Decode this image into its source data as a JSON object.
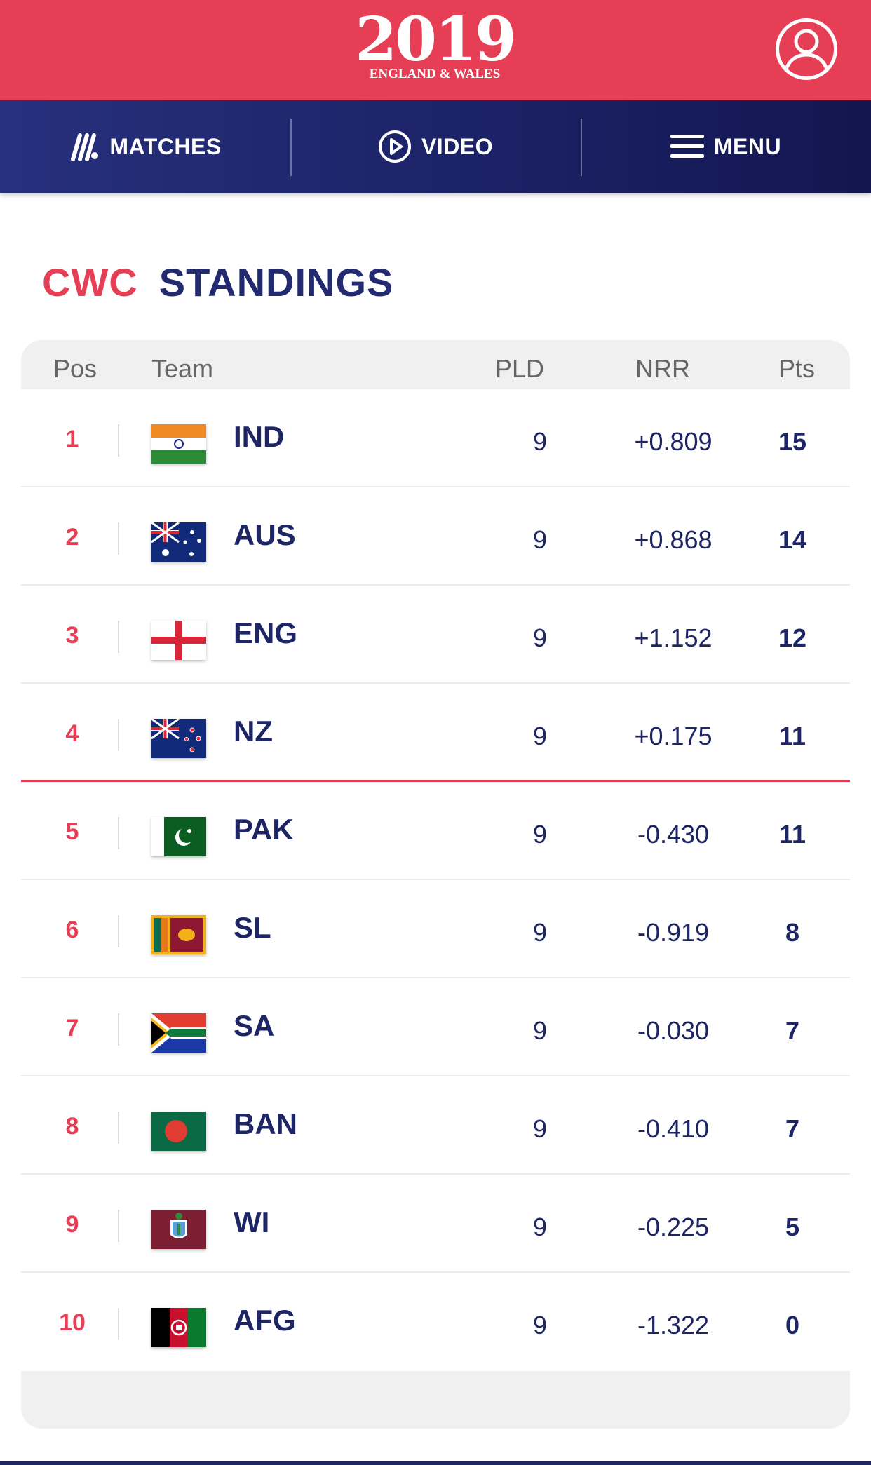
{
  "header": {
    "logo_year": "2019",
    "logo_sub": "ENGLAND & WALES",
    "brand_color": "#e63e55"
  },
  "nav": {
    "matches": "MATCHES",
    "video": "VIDEO",
    "menu": "MENU"
  },
  "title": {
    "prefix": "CWC",
    "main": "STANDINGS"
  },
  "table": {
    "columns": {
      "pos": "Pos",
      "team": "Team",
      "pld": "PLD",
      "nrr": "NRR",
      "pts": "Pts"
    },
    "rows": [
      {
        "pos": "1",
        "team": "IND",
        "pld": "9",
        "nrr": "+0.809",
        "pts": "15",
        "flag": "india-flag-icon"
      },
      {
        "pos": "2",
        "team": "AUS",
        "pld": "9",
        "nrr": "+0.868",
        "pts": "14",
        "flag": "australia-flag-icon"
      },
      {
        "pos": "3",
        "team": "ENG",
        "pld": "9",
        "nrr": "+1.152",
        "pts": "12",
        "flag": "england-flag-icon"
      },
      {
        "pos": "4",
        "team": "NZ",
        "pld": "9",
        "nrr": "+0.175",
        "pts": "11",
        "flag": "new-zealand-flag-icon"
      },
      {
        "pos": "5",
        "team": "PAK",
        "pld": "9",
        "nrr": "-0.430",
        "pts": "11",
        "flag": "pakistan-flag-icon"
      },
      {
        "pos": "6",
        "team": "SL",
        "pld": "9",
        "nrr": "-0.919",
        "pts": "8",
        "flag": "sri-lanka-flag-icon"
      },
      {
        "pos": "7",
        "team": "SA",
        "pld": "9",
        "nrr": "-0.030",
        "pts": "7",
        "flag": "south-africa-flag-icon"
      },
      {
        "pos": "8",
        "team": "BAN",
        "pld": "9",
        "nrr": "-0.410",
        "pts": "7",
        "flag": "bangladesh-flag-icon"
      },
      {
        "pos": "9",
        "team": "WI",
        "pld": "9",
        "nrr": "-0.225",
        "pts": "5",
        "flag": "west-indies-flag-icon"
      },
      {
        "pos": "10",
        "team": "AFG",
        "pld": "9",
        "nrr": "-1.322",
        "pts": "0",
        "flag": "afghanistan-flag-icon"
      }
    ]
  }
}
